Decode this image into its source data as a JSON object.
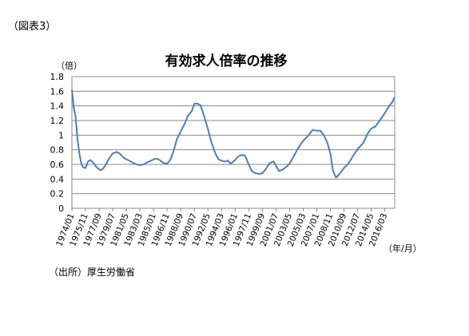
{
  "figure_label": "（図表3）",
  "source_note": "（出所）厚生労働省",
  "chart_data": {
    "type": "line",
    "title": "有効求人倍率の推移",
    "y_unit": "（倍）",
    "x_unit": "（年/月）",
    "ylim": [
      0,
      1.8
    ],
    "yticks": [
      "0",
      "0.2",
      "0.4",
      "0.6",
      "0.8",
      "1",
      "1.2",
      "1.4",
      "1.6",
      "1.8"
    ],
    "x_range": [
      "1974/01",
      "2017/07"
    ],
    "xticks": [
      "1974/01",
      "1975/11",
      "1977/09",
      "1979/07",
      "1981/05",
      "1983/03",
      "1985/01",
      "1986/11",
      "1988/09",
      "1990/07",
      "1992/05",
      "1994/03",
      "1996/01",
      "1997/11",
      "1999/09",
      "2001/07",
      "2003/05",
      "2005/03",
      "2007/01",
      "2008/11",
      "2010/09",
      "2012/07",
      "2014/05",
      "2016/03"
    ],
    "grid": true,
    "line_color": "#4a7ebb",
    "series": [
      {
        "points": [
          [
            "1974/01",
            1.62
          ],
          [
            "1974/04",
            1.38
          ],
          [
            "1974/07",
            1.25
          ],
          [
            "1974/10",
            0.95
          ],
          [
            "1975/01",
            0.75
          ],
          [
            "1975/04",
            0.62
          ],
          [
            "1975/07",
            0.56
          ],
          [
            "1975/11",
            0.55
          ],
          [
            "1976/03",
            0.64
          ],
          [
            "1976/07",
            0.66
          ],
          [
            "1976/12",
            0.62
          ],
          [
            "1977/04",
            0.57
          ],
          [
            "1977/09",
            0.53
          ],
          [
            "1977/12",
            0.52
          ],
          [
            "1978/04",
            0.55
          ],
          [
            "1978/08",
            0.6
          ],
          [
            "1979/01",
            0.68
          ],
          [
            "1979/07",
            0.75
          ],
          [
            "1980/01",
            0.77
          ],
          [
            "1980/06",
            0.75
          ],
          [
            "1981/01",
            0.69
          ],
          [
            "1981/05",
            0.67
          ],
          [
            "1981/10",
            0.65
          ],
          [
            "1982/04",
            0.62
          ],
          [
            "1982/10",
            0.6
          ],
          [
            "1983/03",
            0.59
          ],
          [
            "1983/09",
            0.6
          ],
          [
            "1984/03",
            0.63
          ],
          [
            "1984/09",
            0.65
          ],
          [
            "1985/01",
            0.67
          ],
          [
            "1985/06",
            0.68
          ],
          [
            "1985/11",
            0.66
          ],
          [
            "1986/05",
            0.62
          ],
          [
            "1986/11",
            0.61
          ],
          [
            "1987/04",
            0.66
          ],
          [
            "1987/09",
            0.77
          ],
          [
            "1988/03",
            0.95
          ],
          [
            "1988/09",
            1.05
          ],
          [
            "1989/03",
            1.15
          ],
          [
            "1989/09",
            1.27
          ],
          [
            "1990/03",
            1.33
          ],
          [
            "1990/07",
            1.43
          ],
          [
            "1990/12",
            1.43
          ],
          [
            "1991/05",
            1.41
          ],
          [
            "1991/10",
            1.28
          ],
          [
            "1992/05",
            1.08
          ],
          [
            "1992/10",
            0.92
          ],
          [
            "1993/05",
            0.75
          ],
          [
            "1993/10",
            0.67
          ],
          [
            "1994/03",
            0.65
          ],
          [
            "1994/08",
            0.64
          ],
          [
            "1995/01",
            0.65
          ],
          [
            "1995/06",
            0.61
          ],
          [
            "1996/01",
            0.66
          ],
          [
            "1996/06",
            0.71
          ],
          [
            "1996/12",
            0.73
          ],
          [
            "1997/05",
            0.72
          ],
          [
            "1997/11",
            0.6
          ],
          [
            "1998/04",
            0.51
          ],
          [
            "1998/10",
            0.48
          ],
          [
            "1999/04",
            0.47
          ],
          [
            "1999/09",
            0.48
          ],
          [
            "2000/03",
            0.54
          ],
          [
            "2000/09",
            0.62
          ],
          [
            "2001/03",
            0.64
          ],
          [
            "2001/07",
            0.58
          ],
          [
            "2001/12",
            0.51
          ],
          [
            "2002/06",
            0.53
          ],
          [
            "2002/12",
            0.57
          ],
          [
            "2003/05",
            0.61
          ],
          [
            "2003/11",
            0.7
          ],
          [
            "2004/06",
            0.81
          ],
          [
            "2004/12",
            0.89
          ],
          [
            "2005/06",
            0.95
          ],
          [
            "2005/12",
            1.0
          ],
          [
            "2006/06",
            1.07
          ],
          [
            "2007/01",
            1.06
          ],
          [
            "2007/07",
            1.06
          ],
          [
            "2008/01",
            0.99
          ],
          [
            "2008/06",
            0.9
          ],
          [
            "2008/11",
            0.75
          ],
          [
            "2009/03",
            0.52
          ],
          [
            "2009/08",
            0.42
          ],
          [
            "2010/01",
            0.46
          ],
          [
            "2010/09",
            0.55
          ],
          [
            "2011/04",
            0.61
          ],
          [
            "2011/12",
            0.72
          ],
          [
            "2012/07",
            0.81
          ],
          [
            "2013/04",
            0.89
          ],
          [
            "2013/12",
            1.03
          ],
          [
            "2014/05",
            1.09
          ],
          [
            "2014/12",
            1.12
          ],
          [
            "2015/06",
            1.19
          ],
          [
            "2016/03",
            1.3
          ],
          [
            "2016/10",
            1.4
          ],
          [
            "2017/03",
            1.45
          ],
          [
            "2017/07",
            1.52
          ]
        ]
      }
    ]
  }
}
